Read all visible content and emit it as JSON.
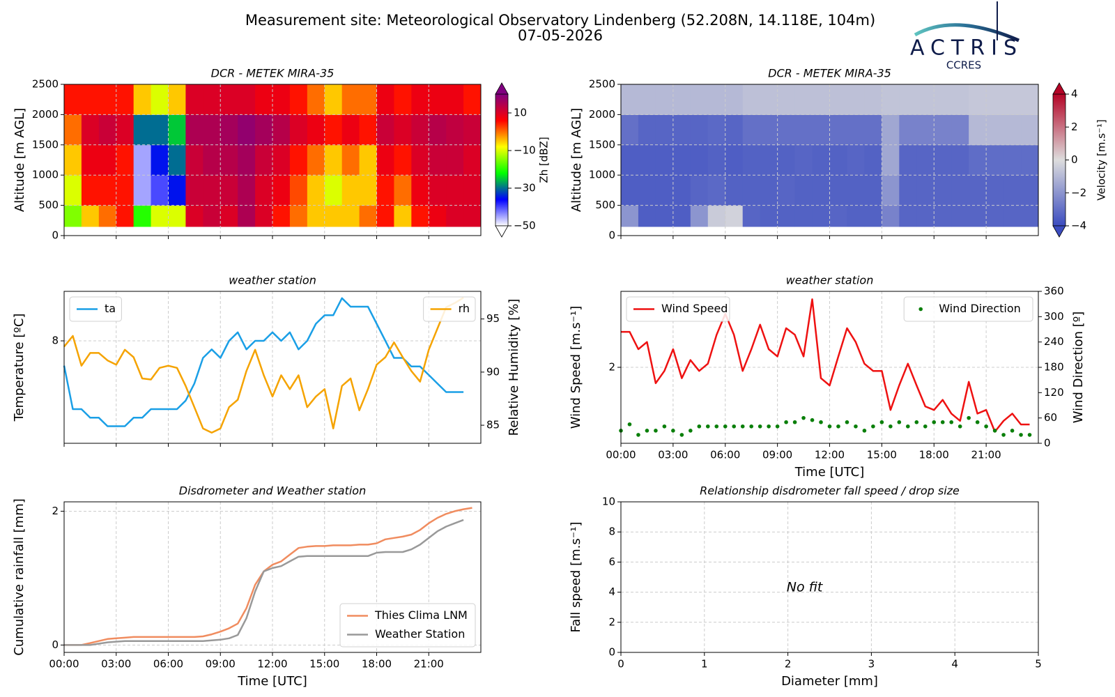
{
  "header": {
    "title": "Measurement site: Meteorological Observatory Lindenberg (52.208N, 14.118E, 104m)",
    "subtitle": "07-05-2026",
    "logo": "ACTRIS",
    "logo_sub": "CCRES"
  },
  "chart_data": [
    {
      "type": "heatmap",
      "title": "DCR - METEK MIRA-35",
      "ylabel": "Altitude [m AGL]",
      "x_bins": [
        0,
        1,
        2,
        3,
        4,
        5,
        6,
        7,
        8,
        9,
        10,
        11,
        12,
        13,
        14,
        15,
        16,
        17,
        18,
        19,
        20,
        21,
        22,
        23,
        24
      ],
      "y_bins": [
        150,
        500,
        1000,
        1500,
        2000,
        2500
      ],
      "z": [
        [
          -15,
          -10,
          -5,
          0,
          5
        ],
        [
          -5,
          5,
          8,
          10,
          5
        ],
        [
          0,
          5,
          8,
          12,
          5
        ],
        [
          5,
          5,
          5,
          10,
          5
        ],
        [
          -20,
          -45,
          -45,
          -30,
          -5
        ],
        [
          -10,
          -40,
          -35,
          -30,
          -10
        ],
        [
          -10,
          -35,
          -30,
          -25,
          -5
        ],
        [
          10,
          12,
          12,
          15,
          10
        ],
        [
          12,
          12,
          14,
          15,
          10
        ],
        [
          10,
          12,
          14,
          16,
          10
        ],
        [
          15,
          15,
          16,
          18,
          10
        ],
        [
          10,
          10,
          12,
          16,
          8
        ],
        [
          5,
          8,
          10,
          14,
          8
        ],
        [
          0,
          2,
          5,
          10,
          5
        ],
        [
          -5,
          -5,
          0,
          8,
          0
        ],
        [
          -5,
          -10,
          -5,
          5,
          -5
        ],
        [
          -5,
          -5,
          0,
          8,
          0
        ],
        [
          0,
          -5,
          -5,
          5,
          0
        ],
        [
          5,
          5,
          8,
          12,
          8
        ],
        [
          -5,
          0,
          5,
          10,
          5
        ],
        [
          5,
          8,
          10,
          12,
          8
        ],
        [
          8,
          10,
          12,
          14,
          8
        ],
        [
          10,
          10,
          12,
          13,
          8
        ],
        [
          10,
          10,
          10,
          12,
          5
        ]
      ],
      "xlim": [
        0,
        24
      ],
      "xticks": [
        0,
        3,
        6,
        9,
        12,
        15,
        18,
        21
      ],
      "xtick_labels": false,
      "ylim": [
        0,
        2500
      ],
      "yticks": [
        0,
        500,
        1000,
        1500,
        2000,
        2500
      ],
      "grid": true,
      "colorbar": {
        "label": "Zh [dBZ]",
        "lim": [
          -50,
          20
        ],
        "ticks": [
          10,
          {
            "value": -10,
            "label": "−10"
          },
          {
            "value": -30,
            "label": "−30"
          },
          {
            "value": -50,
            "label": "−50"
          }
        ],
        "colors": [
          "#ffffff",
          "#0000ff",
          "#00ff00",
          "#ffff00",
          "#ff0000",
          "#800080"
        ]
      }
    },
    {
      "type": "heatmap",
      "title": "DCR - METEK MIRA-35",
      "ylabel": "Altitude [m AGL]",
      "x_bins": [
        0,
        1,
        2,
        3,
        4,
        5,
        6,
        7,
        8,
        9,
        10,
        11,
        12,
        13,
        14,
        15,
        16,
        17,
        18,
        19,
        20,
        21,
        22,
        23,
        24
      ],
      "y_bins": [
        150,
        500,
        1000,
        1500,
        2000,
        2500
      ],
      "z": [
        [
          -2,
          -3.5,
          -3.5,
          -3,
          -1
        ],
        [
          -3.5,
          -3.5,
          -3.5,
          -3.3,
          -1
        ],
        [
          -3.5,
          -3.5,
          -3.5,
          -3.3,
          -1
        ],
        [
          -3.5,
          -3.5,
          -3.5,
          -3.3,
          -1
        ],
        [
          -2,
          -3.3,
          -3.5,
          -3.3,
          -1
        ],
        [
          -0.5,
          -3.2,
          -3.4,
          -3.2,
          -1
        ],
        [
          -0.3,
          -3.4,
          -3.5,
          -3.3,
          -1
        ],
        [
          -3.3,
          -3.4,
          -3.4,
          -3,
          -0.8
        ],
        [
          -3.4,
          -3.4,
          -3.4,
          -3,
          -0.8
        ],
        [
          -3.4,
          -3.3,
          -3.4,
          -3,
          -0.8
        ],
        [
          -3.4,
          -3.4,
          -3.3,
          -3,
          -0.8
        ],
        [
          -3.4,
          -3.4,
          -3.4,
          -3,
          -0.8
        ],
        [
          -3.3,
          -3.4,
          -3.4,
          -3,
          -0.8
        ],
        [
          -3.4,
          -3.4,
          -3.3,
          -3,
          -0.8
        ],
        [
          -3.4,
          -3.4,
          -3.4,
          -3,
          -0.8
        ],
        [
          -2.5,
          -2,
          -1.5,
          -1.5,
          -0.7
        ],
        [
          -3.3,
          -3.3,
          -3.3,
          -2.5,
          -0.7
        ],
        [
          -3.3,
          -3.3,
          -3.3,
          -2.5,
          -0.7
        ],
        [
          -3.3,
          -3.3,
          -3.3,
          -2.5,
          -0.7
        ],
        [
          -3.3,
          -3.3,
          -3.3,
          -2.5,
          -0.7
        ],
        [
          -3.3,
          -3.3,
          -3.1,
          -1,
          -0.6
        ],
        [
          -3.3,
          -3.3,
          -3.1,
          -1,
          -0.6
        ],
        [
          -3.3,
          -3.3,
          -3.1,
          -1,
          -0.6
        ],
        [
          -3.3,
          -3.3,
          -3.1,
          -1,
          -0.6
        ]
      ],
      "xlim": [
        0,
        24
      ],
      "xticks": [
        0,
        3,
        6,
        9,
        12,
        15,
        18,
        21
      ],
      "xtick_labels": false,
      "ylim": [
        0,
        2500
      ],
      "yticks": [
        0,
        500,
        1000,
        1500,
        2000,
        2500
      ],
      "grid": true,
      "colorbar": {
        "label": "Velocity [m.s⁻¹]",
        "lim": [
          -4,
          4
        ],
        "ticks": [
          4,
          2,
          0,
          {
            "value": -2,
            "label": "−2"
          },
          {
            "value": -4,
            "label": "−4"
          }
        ],
        "colors": [
          "#3b4cc0",
          "#dddddd",
          "#b40426"
        ]
      }
    },
    {
      "type": "line",
      "title": "weather station",
      "ylabel": "Temperature [ºC]",
      "y2label": "Relative Humidity [%]",
      "x": [
        0,
        0.5,
        1,
        1.5,
        2,
        2.5,
        3,
        3.5,
        4,
        4.5,
        5,
        5.5,
        6,
        6.5,
        7,
        7.5,
        8,
        8.5,
        9,
        9.5,
        10,
        10.5,
        11,
        11.5,
        12,
        12.5,
        13,
        13.5,
        14,
        14.5,
        15,
        15.5,
        16,
        16.5,
        17,
        17.5,
        18,
        18.5,
        19,
        19.5,
        20,
        20.5,
        21,
        21.5,
        22,
        22.5,
        23
      ],
      "series": [
        {
          "name": "ta",
          "color": "#1a9fe6",
          "legend_loc": "upper left",
          "values": [
            7.71,
            7.2,
            7.2,
            7.1,
            7.1,
            7.0,
            7.0,
            7.0,
            7.1,
            7.1,
            7.2,
            7.2,
            7.2,
            7.2,
            7.3,
            7.5,
            7.8,
            7.9,
            7.8,
            8.0,
            8.1,
            7.9,
            8.0,
            8.0,
            8.1,
            8.0,
            8.1,
            7.9,
            8.0,
            8.2,
            8.3,
            8.3,
            8.5,
            8.4,
            8.4,
            8.4,
            8.2,
            8.0,
            7.8,
            7.8,
            7.7,
            7.7,
            7.6,
            7.5,
            7.4,
            7.4,
            7.4
          ]
        },
        {
          "name": "rh",
          "color": "#f5a300",
          "axis": "y2",
          "legend_loc": "upper right",
          "values": [
            92.4,
            93.4,
            90.6,
            91.8,
            91.8,
            91.1,
            90.7,
            92.1,
            91.4,
            89.4,
            89.3,
            90.4,
            90.6,
            90.4,
            88.7,
            86.7,
            84.7,
            84.3,
            84.7,
            86.7,
            87.4,
            90.1,
            92.1,
            89.7,
            87.7,
            89.7,
            88.4,
            89.7,
            86.7,
            87.7,
            88.4,
            84.7,
            88.7,
            89.4,
            86.4,
            88.4,
            90.7,
            91.4,
            92.8,
            91.4,
            90.1,
            89.1,
            92.1,
            94.1,
            96.1,
            96.5,
            97.0
          ]
        }
      ],
      "xlim": [
        0,
        24
      ],
      "xticks": [
        0,
        3,
        6,
        9,
        12,
        15,
        18,
        21
      ],
      "xtick_labels": false,
      "ylim": [
        6.8,
        8.58
      ],
      "yticks": [
        8
      ],
      "y2lim": [
        83.3,
        97.6
      ],
      "y2ticks": [
        85,
        90,
        95
      ],
      "grid": true
    },
    {
      "type": "line",
      "title": "weather station",
      "ylabel": "Wind Speed [m.s⁻¹]",
      "y2label": "Wind Direction [º]",
      "xlabel": "Time [UTC]",
      "x": [
        0,
        0.5,
        1,
        1.5,
        2,
        2.5,
        3,
        3.5,
        4,
        4.5,
        5,
        5.5,
        6,
        6.5,
        7,
        7.5,
        8,
        8.5,
        9,
        9.5,
        10,
        10.5,
        11,
        11.5,
        12,
        12.5,
        13,
        13.5,
        14,
        14.5,
        15,
        15.5,
        16,
        16.5,
        17,
        17.5,
        18,
        18.5,
        19,
        19.5,
        20,
        20.5,
        21,
        21.5,
        22,
        22.5,
        23,
        23.5
      ],
      "series": [
        {
          "name": "Wind Speed",
          "color": "#ee1111",
          "legend_loc": "upper left",
          "values": [
            2.49,
            2.49,
            2.25,
            2.35,
            1.78,
            1.95,
            2.25,
            1.85,
            2.1,
            1.95,
            2.05,
            2.45,
            2.74,
            2.45,
            1.95,
            2.25,
            2.59,
            2.25,
            2.15,
            2.54,
            2.45,
            2.15,
            2.94,
            1.85,
            1.75,
            2.15,
            2.54,
            2.35,
            2.05,
            1.95,
            1.95,
            1.41,
            1.75,
            2.05,
            1.75,
            1.46,
            1.41,
            1.55,
            1.36,
            1.26,
            1.8,
            1.36,
            1.41,
            1.11,
            1.26,
            1.36,
            1.21,
            1.21
          ]
        },
        {
          "name": "Wind Direction",
          "color": "#0a7f0a",
          "axis": "y2",
          "markers": true,
          "legend_loc": "upper right",
          "values": [
            30,
            45,
            20,
            30,
            30,
            40,
            30,
            20,
            30,
            40,
            40,
            40,
            40,
            40,
            40,
            40,
            40,
            40,
            40,
            50,
            50,
            60,
            55,
            50,
            40,
            40,
            50,
            40,
            30,
            40,
            50,
            40,
            50,
            40,
            50,
            40,
            50,
            50,
            50,
            40,
            60,
            50,
            40,
            30,
            20,
            30,
            20,
            20
          ]
        }
      ],
      "xlim": [
        0,
        24
      ],
      "xticks": [
        {
          "value": 0,
          "label": "00:00"
        },
        {
          "value": 3,
          "label": "03:00"
        },
        {
          "value": 6,
          "label": "06:00"
        },
        {
          "value": 9,
          "label": "09:00"
        },
        {
          "value": 12,
          "label": "12:00"
        },
        {
          "value": 15,
          "label": "15:00"
        },
        {
          "value": 18,
          "label": "18:00"
        },
        {
          "value": 21,
          "label": "21:00"
        }
      ],
      "ylim": [
        0.95,
        3.05
      ],
      "yticks": [
        2
      ],
      "y2lim": [
        0,
        360
      ],
      "y2ticks": [
        0,
        60,
        120,
        180,
        240,
        300,
        360
      ],
      "grid": true
    },
    {
      "type": "line",
      "title": "Disdrometer and Weather station",
      "ylabel": "Cumulative rainfall [mm]",
      "xlabel": "Time [UTC]",
      "legend_loc": "lower right",
      "x": [
        0,
        0.5,
        1,
        1.5,
        2,
        2.5,
        3,
        3.5,
        4,
        4.5,
        5,
        5.5,
        6,
        6.5,
        7,
        7.5,
        8,
        8.5,
        9,
        9.5,
        10,
        10.5,
        11,
        11.5,
        12,
        12.5,
        13,
        13.5,
        14,
        14.5,
        15,
        15.5,
        16,
        16.5,
        17,
        17.5,
        18,
        18.5,
        19,
        19.5,
        20,
        20.5,
        21,
        21.5,
        22,
        22.5,
        23,
        23.5
      ],
      "series": [
        {
          "name": "Thies Clima LNM",
          "color": "#f08c5f",
          "values": [
            0,
            0,
            0,
            0.03,
            0.06,
            0.09,
            0.1,
            0.11,
            0.12,
            0.12,
            0.12,
            0.12,
            0.12,
            0.12,
            0.12,
            0.12,
            0.13,
            0.16,
            0.2,
            0.25,
            0.32,
            0.55,
            0.9,
            1.1,
            1.2,
            1.25,
            1.35,
            1.45,
            1.47,
            1.48,
            1.48,
            1.49,
            1.49,
            1.49,
            1.5,
            1.5,
            1.52,
            1.58,
            1.6,
            1.62,
            1.65,
            1.72,
            1.82,
            1.9,
            1.96,
            2.0,
            2.03,
            2.05
          ]
        },
        {
          "name": "Weather Station",
          "color": "#999999",
          "values": [
            0,
            0,
            0,
            0,
            0.02,
            0.04,
            0.05,
            0.06,
            0.06,
            0.06,
            0.06,
            0.06,
            0.06,
            0.06,
            0.06,
            0.06,
            0.06,
            0.07,
            0.08,
            0.1,
            0.15,
            0.4,
            0.8,
            1.1,
            1.15,
            1.18,
            1.25,
            1.32,
            1.33,
            1.33,
            1.33,
            1.33,
            1.33,
            1.33,
            1.33,
            1.33,
            1.38,
            1.39,
            1.39,
            1.39,
            1.43,
            1.5,
            1.6,
            1.7,
            1.77,
            1.82,
            1.87,
            null
          ]
        }
      ],
      "xlim": [
        0,
        24
      ],
      "xticks": [
        {
          "value": 0,
          "label": "00:00"
        },
        {
          "value": 3,
          "label": "03:00"
        },
        {
          "value": 6,
          "label": "06:00"
        },
        {
          "value": 9,
          "label": "09:00"
        },
        {
          "value": 12,
          "label": "12:00"
        },
        {
          "value": 15,
          "label": "15:00"
        },
        {
          "value": 18,
          "label": "18:00"
        },
        {
          "value": 21,
          "label": "21:00"
        }
      ],
      "ylim": [
        -0.11,
        2.14
      ],
      "yticks": [
        0,
        2
      ],
      "grid": true
    },
    {
      "type": "scatter",
      "title": "Relationship disdrometer fall speed / drop size",
      "xlabel": "Diameter [mm]",
      "ylabel": "Fall speed [m.s⁻¹]",
      "annotation": "No fit",
      "xlim": [
        0,
        5
      ],
      "xticks": [
        0,
        1,
        2,
        3,
        4,
        5
      ],
      "ylim": [
        0,
        10
      ],
      "yticks": [
        0,
        2,
        4,
        6,
        8,
        10
      ],
      "grid": true
    }
  ]
}
